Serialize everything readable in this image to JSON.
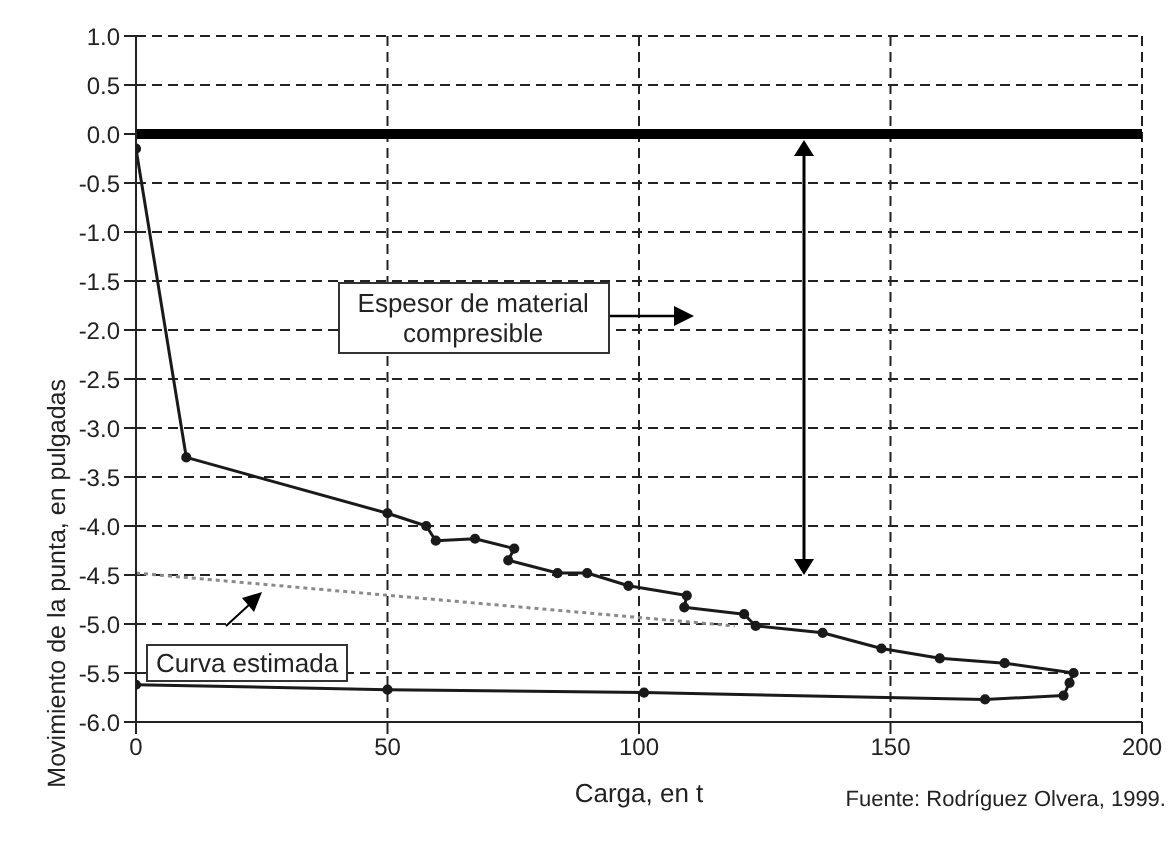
{
  "chart_data": {
    "type": "line",
    "xlabel": "Carga, en t",
    "ylabel": "Movimiento de la punta, en pulgadas",
    "xlim": [
      0,
      200
    ],
    "xticks": [
      0,
      50,
      100,
      150,
      200
    ],
    "ylim": [
      -6,
      1
    ],
    "yticks": [
      {
        "value": 1,
        "label": "1.0"
      },
      {
        "value": 0.5,
        "label": "0.5"
      },
      {
        "value": 0,
        "label": "0.0"
      },
      {
        "value": -0.5,
        "label": "-0.5"
      },
      {
        "value": -1,
        "label": "-1.0"
      },
      {
        "value": -1.5,
        "label": "-1.5"
      },
      {
        "value": -2,
        "label": "-2.0"
      },
      {
        "value": -2.5,
        "label": "-2.5"
      },
      {
        "value": -3,
        "label": "-3.0"
      },
      {
        "value": -3.5,
        "label": "-3.5"
      },
      {
        "value": -4,
        "label": "-4.0"
      },
      {
        "value": -4.5,
        "label": "-4.5"
      },
      {
        "value": -5,
        "label": "-5.0"
      },
      {
        "value": -5.5,
        "label": "-5.5"
      },
      {
        "value": -6,
        "label": "-6.0"
      }
    ],
    "grid": true,
    "legend": false,
    "series": [
      {
        "color": "#1a1a1a",
        "marker": "circle",
        "line_style": "solid",
        "x": [
          0,
          10,
          50,
          57.7,
          59.6,
          67.4,
          75.2,
          74,
          83.8,
          89.7,
          97.9,
          109.5,
          109,
          120.9,
          123.2,
          136.5,
          148.2,
          159.8,
          172.7,
          186.4,
          185.6,
          184.4,
          168.8,
          101,
          50,
          0
        ],
        "values": [
          -0.15,
          -3.3,
          -3.87,
          -4.0,
          -4.15,
          -4.13,
          -4.23,
          -4.35,
          -4.48,
          -4.48,
          -4.61,
          -4.71,
          -4.83,
          -4.9,
          -5.02,
          -5.09,
          -5.25,
          -5.35,
          -5.4,
          -5.5,
          -5.6,
          -5.73,
          -5.77,
          -5.7,
          -5.67,
          -5.62
        ]
      },
      {
        "name": "Curva estimada",
        "color": "#8a8a8a",
        "marker": "none",
        "line_style": "dotted",
        "x": [
          0,
          119
        ],
        "values": [
          -4.48,
          -5.02
        ]
      }
    ],
    "ref_lines": [
      {
        "axis": "y",
        "value": 0,
        "color": "#000000"
      }
    ],
    "annotations": [
      "Espesor de material compresible",
      "Fuente: Rodríguez Olvera, 1999."
    ]
  }
}
